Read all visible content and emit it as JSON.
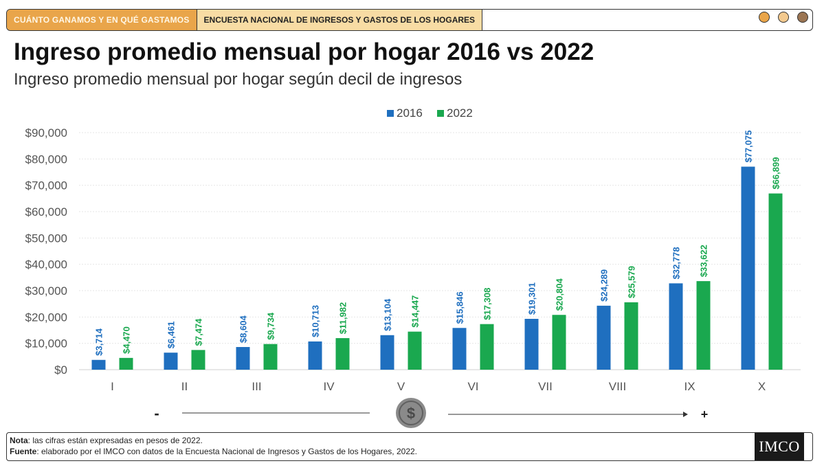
{
  "header": {
    "tab1": "CUÁNTO GANAMOS Y EN QUÉ GASTAMOS",
    "tab2": "ENCUESTA NACIONAL DE INGRESOS Y GASTOS DE LOS HOGARES",
    "window_dots": [
      "#e9a54a",
      "#f3c98e",
      "#9b7553"
    ]
  },
  "page": {
    "title": "Ingreso promedio mensual por hogar 2016 vs 2022",
    "subtitle": "Ingreso promedio mensual por hogar según decil de ingresos"
  },
  "chart_data": {
    "type": "bar",
    "categories": [
      "I",
      "II",
      "III",
      "IV",
      "V",
      "VI",
      "VII",
      "VIII",
      "IX",
      "X"
    ],
    "series": [
      {
        "name": "2016",
        "color": "#1f6fbf",
        "values": [
          3714,
          6461,
          8604,
          10713,
          13104,
          15846,
          19301,
          24289,
          32778,
          77075
        ],
        "labels": [
          "$3,714",
          "$6,461",
          "$8,604",
          "$10,713",
          "$13,104",
          "$15,846",
          "$19,301",
          "$24,289",
          "$32,778",
          "$77,075"
        ]
      },
      {
        "name": "2022",
        "color": "#1aa84f",
        "values": [
          4470,
          7474,
          9734,
          11982,
          14447,
          17308,
          20804,
          25579,
          33622,
          66899
        ],
        "labels": [
          "$4,470",
          "$7,474",
          "$9,734",
          "$11,982",
          "$14,447",
          "$17,308",
          "$20,804",
          "$25,579",
          "$33,622",
          "$66,899"
        ]
      }
    ],
    "yticks": [
      0,
      10000,
      20000,
      30000,
      40000,
      50000,
      60000,
      70000,
      80000,
      90000
    ],
    "ytick_labels": [
      "$0",
      "$10,000",
      "$20,000",
      "$30,000",
      "$40,000",
      "$50,000",
      "$60,000",
      "$70,000",
      "$80,000",
      "$90,000"
    ],
    "ylim": [
      0,
      90000
    ],
    "legend_position": "top-center",
    "grid": true,
    "axis_note_left": "-",
    "axis_note_right": "+",
    "axis_note_icon": "dollar-coin-icon"
  },
  "footer": {
    "note_label": "Nota",
    "note_text": ": las cifras están expresadas en pesos de 2022.",
    "source_label": "Fuente",
    "source_text": ": elaborado por el IMCO con datos de la Encuesta Nacional de Ingresos y Gastos de los Hogares, 2022.",
    "logo_text": "IMCO"
  }
}
